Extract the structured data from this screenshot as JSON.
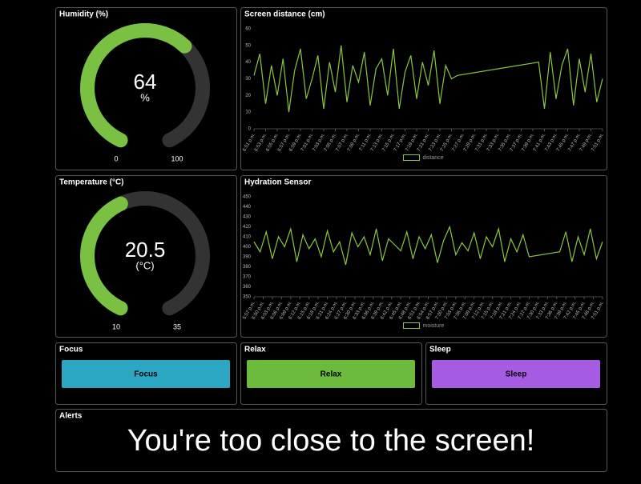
{
  "chart_data": [
    {
      "type": "gauge",
      "title": "Humidity (%)",
      "value": 64,
      "unit": "%",
      "min": 0,
      "max": 100,
      "color": "#7ac143"
    },
    {
      "type": "line",
      "title": "Screen distance (cm)",
      "x": [
        "6:51 p.m.",
        "6:52 p.m.",
        "6:53 p.m.",
        "6:54 p.m.",
        "6:55 p.m.",
        "6:56 p.m.",
        "6:57 p.m.",
        "6:58 p.m.",
        "6:59 p.m.",
        "7:00 p.m.",
        "7:01 p.m.",
        "7:02 p.m.",
        "7:03 p.m.",
        "7:04 p.m.",
        "7:05 p.m.",
        "7:06 p.m.",
        "7:07 p.m.",
        "7:08 p.m.",
        "7:09 p.m.",
        "7:10 p.m.",
        "7:11 p.m.",
        "7:12 p.m.",
        "7:13 p.m.",
        "7:14 p.m.",
        "7:15 p.m.",
        "7:16 p.m.",
        "7:17 p.m.",
        "7:18 p.m.",
        "7:19 p.m.",
        "7:20 p.m.",
        "7:21 p.m.",
        "7:22 p.m.",
        "7:23 p.m.",
        "7:24 p.m.",
        "7:25 p.m.",
        "7:26 p.m.",
        "7:40 p.m.",
        "7:41 p.m.",
        "7:42 p.m.",
        "7:43 p.m.",
        "7:44 p.m.",
        "7:45 p.m.",
        "7:46 p.m.",
        "7:47 p.m.",
        "7:48 p.m.",
        "7:49 p.m.",
        "7:50 p.m.",
        "7:51 p.m."
      ],
      "series": [
        {
          "name": "distance",
          "color": "#8cc63f",
          "values": [
            32,
            45,
            15,
            38,
            20,
            42,
            10,
            35,
            48,
            18,
            30,
            44,
            12,
            40,
            22,
            50,
            16,
            38,
            28,
            46,
            14,
            36,
            42,
            20,
            48,
            12,
            34,
            44,
            18,
            40,
            26,
            47,
            15,
            38,
            30,
            32,
            40,
            12,
            46,
            18,
            38,
            48,
            14,
            42,
            22,
            45,
            16,
            30
          ]
        }
      ],
      "xlim": [
        "6:51 p.m.",
        "7:51 p.m."
      ],
      "xticks": [
        "6:51 p.m.",
        "6:53 p.m.",
        "6:55 p.m.",
        "6:57 p.m.",
        "6:59 p.m.",
        "7:01 p.m.",
        "7:03 p.m.",
        "7:05 p.m.",
        "7:07 p.m.",
        "7:09 p.m.",
        "7:11 p.m.",
        "7:13 p.m.",
        "7:15 p.m.",
        "7:17 p.m.",
        "7:19 p.m.",
        "7:21 p.m.",
        "7:23 p.m.",
        "7:25 p.m.",
        "7:27 p.m.",
        "7:29 p.m.",
        "7:31 p.m.",
        "7:33 p.m.",
        "7:35 p.m.",
        "7:37 p.m.",
        "7:39 p.m.",
        "7:41 p.m.",
        "7:43 p.m.",
        "7:45 p.m.",
        "7:47 p.m.",
        "7:49 p.m.",
        "7:51 p.m."
      ],
      "ylim": [
        0,
        60
      ],
      "yticks": [
        0,
        10,
        20,
        30,
        40,
        50,
        60
      ]
    },
    {
      "type": "gauge",
      "title": "Temperature (°C)",
      "value": 20.5,
      "unit": "(°C)",
      "min": 10,
      "max": 35,
      "color": "#7ac143"
    },
    {
      "type": "line",
      "title": "Hydration Sensor",
      "x": [
        "5:57 p.m.",
        "5:59 p.m.",
        "6:01 p.m.",
        "6:03 p.m.",
        "6:05 p.m.",
        "6:07 p.m.",
        "6:09 p.m.",
        "6:11 p.m.",
        "6:13 p.m.",
        "6:15 p.m.",
        "6:17 p.m.",
        "6:19 p.m.",
        "6:21 p.m.",
        "6:23 p.m.",
        "6:25 p.m.",
        "6:27 p.m.",
        "6:29 p.m.",
        "6:31 p.m.",
        "6:33 p.m.",
        "6:35 p.m.",
        "6:37 p.m.",
        "6:39 p.m.",
        "6:41 p.m.",
        "6:43 p.m.",
        "6:45 p.m.",
        "6:47 p.m.",
        "6:49 p.m.",
        "6:51 p.m.",
        "6:53 p.m.",
        "6:55 p.m.",
        "6:57 p.m.",
        "6:59 p.m.",
        "7:01 p.m.",
        "7:03 p.m.",
        "7:05 p.m.",
        "7:07 p.m.",
        "7:09 p.m.",
        "7:11 p.m.",
        "7:13 p.m.",
        "7:15 p.m.",
        "7:17 p.m.",
        "7:19 p.m.",
        "7:21 p.m.",
        "7:23 p.m.",
        "7:25 p.m.",
        "7:27 p.m.",
        "7:37 p.m.",
        "7:39 p.m.",
        "7:41 p.m.",
        "7:43 p.m.",
        "7:45 p.m.",
        "7:47 p.m.",
        "7:49 p.m.",
        "7:51 p.m."
      ],
      "series": [
        {
          "name": "moisture",
          "color": "#8cc63f",
          "values": [
            405,
            395,
            415,
            388,
            410,
            400,
            418,
            385,
            412,
            398,
            408,
            390,
            416,
            395,
            405,
            382,
            414,
            400,
            410,
            392,
            418,
            386,
            408,
            402,
            396,
            415,
            388,
            410,
            398,
            412,
            384,
            406,
            420,
            392,
            404,
            396,
            414,
            388,
            410,
            400,
            418,
            385,
            408,
            395,
            412,
            390,
            395,
            415,
            385,
            410,
            392,
            418,
            388,
            405
          ]
        }
      ],
      "xlim": [
        "5:57 p.m.",
        "7:51 p.m."
      ],
      "xticks": [
        "5:57 p.m.",
        "6:00 p.m.",
        "6:03 p.m.",
        "6:06 p.m.",
        "6:09 p.m.",
        "6:12 p.m.",
        "6:15 p.m.",
        "6:18 p.m.",
        "6:21 p.m.",
        "6:24 p.m.",
        "6:27 p.m.",
        "6:30 p.m.",
        "6:33 p.m.",
        "6:36 p.m.",
        "6:39 p.m.",
        "6:42 p.m.",
        "6:45 p.m.",
        "6:48 p.m.",
        "6:51 p.m.",
        "6:54 p.m.",
        "6:57 p.m.",
        "7:00 p.m.",
        "7:03 p.m.",
        "7:06 p.m.",
        "7:09 p.m.",
        "7:12 p.m.",
        "7:15 p.m.",
        "7:18 p.m.",
        "7:21 p.m.",
        "7:24 p.m.",
        "7:27 p.m.",
        "7:30 p.m.",
        "7:33 p.m.",
        "7:36 p.m.",
        "7:39 p.m.",
        "7:42 p.m.",
        "7:45 p.m.",
        "7:48 p.m.",
        "7:51 p.m."
      ],
      "ylim": [
        350,
        450
      ],
      "yticks": [
        350,
        360,
        370,
        380,
        390,
        400,
        410,
        420,
        430,
        440,
        450
      ]
    }
  ],
  "buttons": [
    {
      "group": "Focus",
      "label": "Focus",
      "color": "#2ba7c4"
    },
    {
      "group": "Relax",
      "label": "Relax",
      "color": "#6cbb3c"
    },
    {
      "group": "Sleep",
      "label": "Sleep",
      "color": "#a65ce2"
    }
  ],
  "alerts": {
    "title": "Alerts",
    "message": "You're too close to the screen!"
  }
}
